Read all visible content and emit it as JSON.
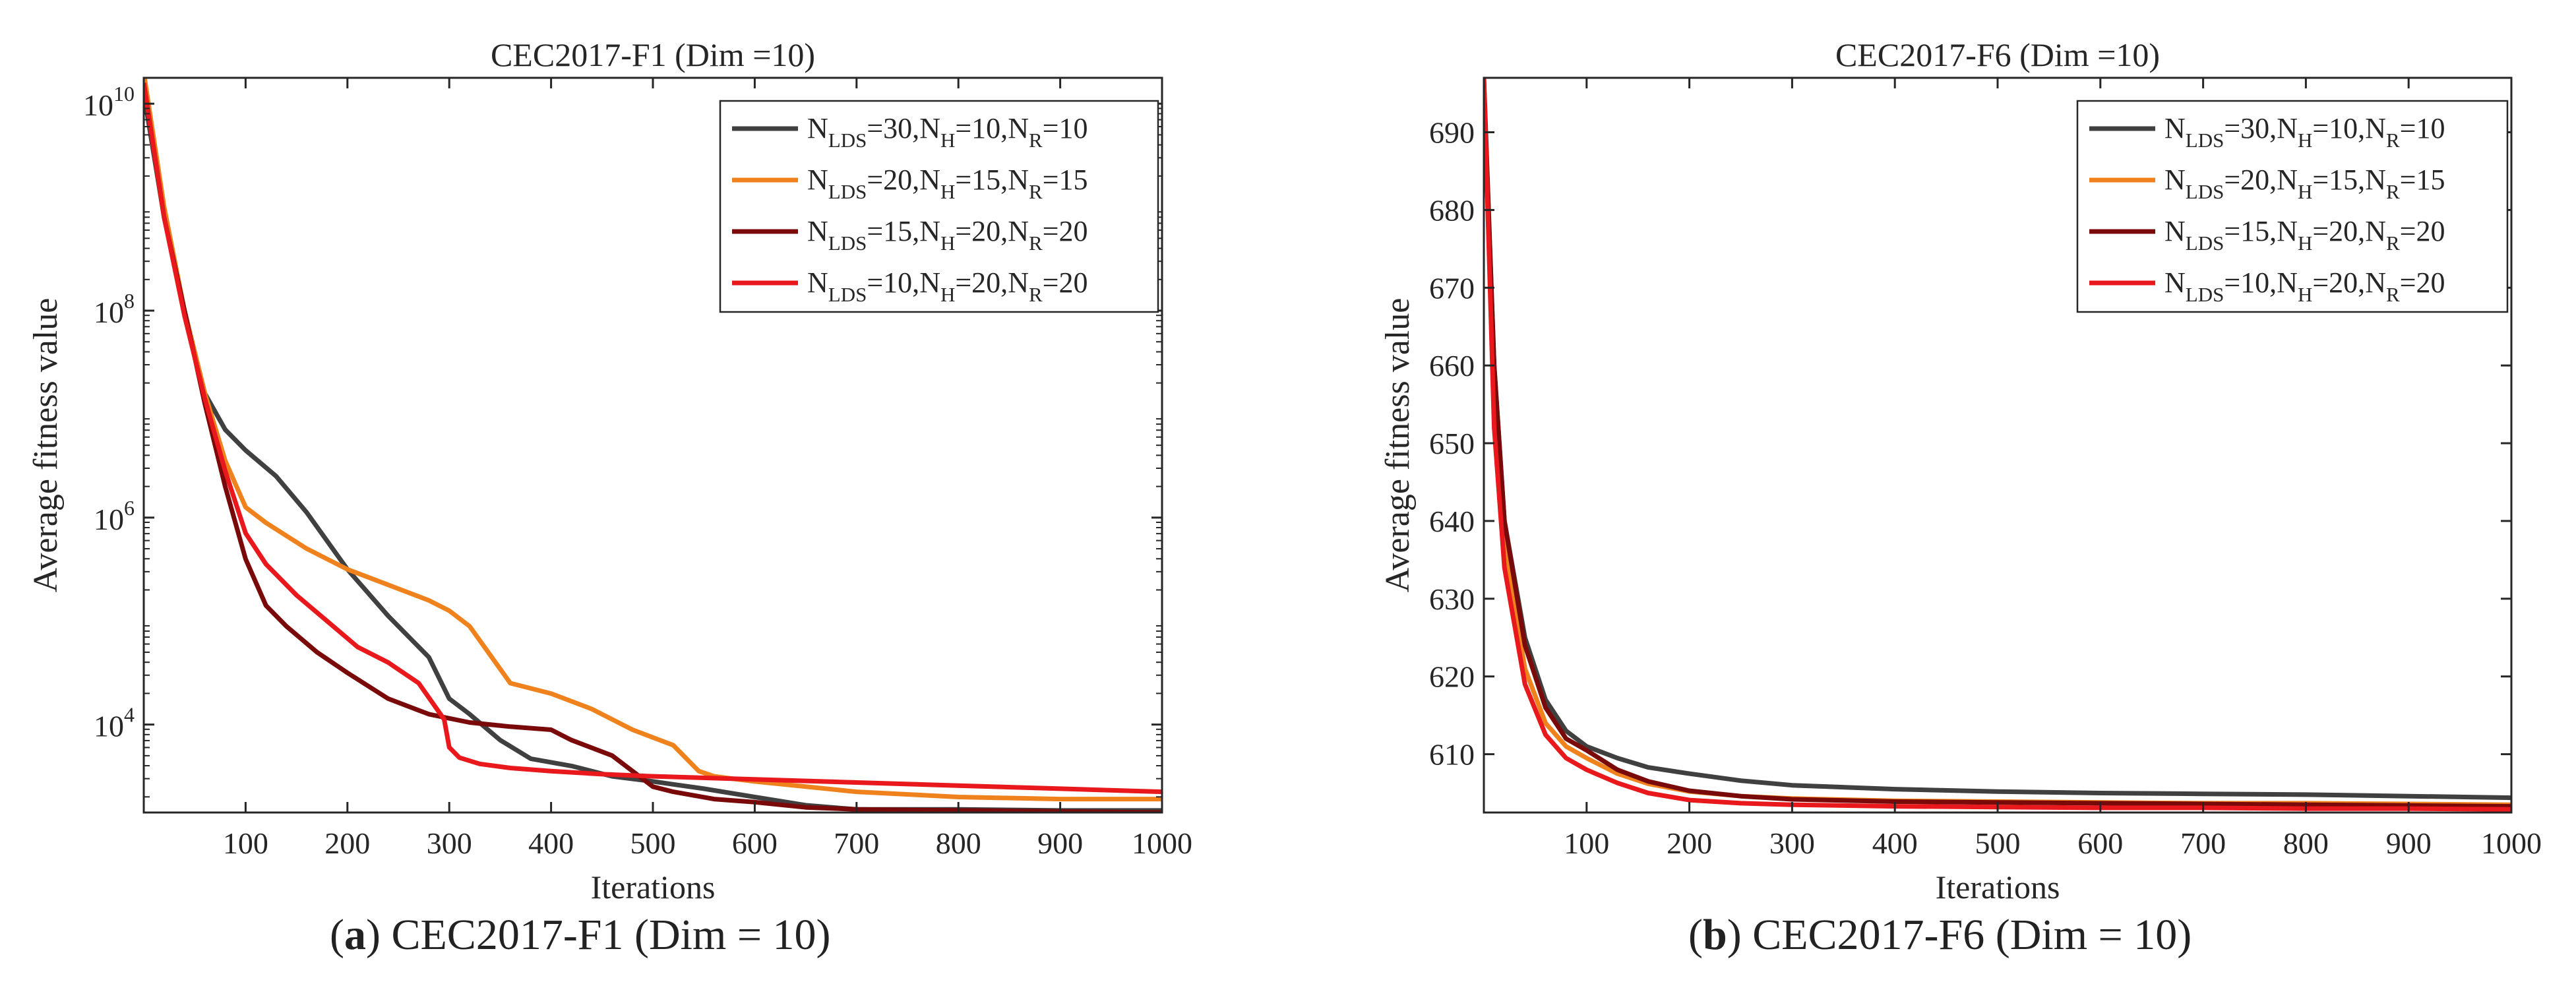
{
  "chart_data": [
    {
      "type": "line",
      "panel": "a",
      "title": "CEC2017-F1 (Dim =10)",
      "xlabel": "Iterations",
      "ylabel": "Average fitness value",
      "yscale": "log",
      "xlim": [
        0,
        1000
      ],
      "ylim_log10": [
        3.15,
        10.25
      ],
      "xticks": [
        100,
        200,
        300,
        400,
        500,
        600,
        700,
        800,
        900,
        1000
      ],
      "xtick_labels": [
        "100",
        "200",
        "300",
        "400",
        "500",
        "600",
        "700",
        "800",
        "900",
        "1000"
      ],
      "yticks_log10": [
        4,
        6,
        8,
        10
      ],
      "ytick_labels": [
        {
          "base": "10",
          "exp": "4"
        },
        {
          "base": "10",
          "exp": "6"
        },
        {
          "base": "10",
          "exp": "8"
        },
        {
          "base": "10",
          "exp": "10"
        }
      ],
      "legend_position": "top-right",
      "caption": {
        "label": "a",
        "text": " CEC2017-F1 (Dim = 10)"
      },
      "series": [
        {
          "name": "N_LDS=30,N_H=10,N_R=10",
          "color": "#404040",
          "legend": [
            [
              "N",
              "LDS",
              "=30,"
            ],
            [
              "N",
              "H",
              "=10,"
            ],
            [
              "N",
              "R",
              "=10"
            ]
          ],
          "x": [
            0,
            20,
            40,
            60,
            80,
            100,
            130,
            160,
            200,
            240,
            280,
            300,
            320,
            350,
            380,
            420,
            460,
            500,
            550,
            600,
            650,
            700,
            800,
            900,
            1000
          ],
          "y": [
            10.1,
            8.9,
            8.0,
            7.2,
            6.85,
            6.65,
            6.4,
            6.05,
            5.5,
            5.05,
            4.65,
            4.25,
            4.1,
            3.85,
            3.67,
            3.6,
            3.5,
            3.45,
            3.38,
            3.3,
            3.22,
            3.18,
            3.18,
            3.17,
            3.17
          ]
        },
        {
          "name": "N_LDS=20,N_H=15,N_R=15",
          "color": "#f0821e",
          "legend": [
            [
              "N",
              "LDS",
              "=20,"
            ],
            [
              "N",
              "H",
              "=15,"
            ],
            [
              "N",
              "R",
              "=15"
            ]
          ],
          "x": [
            0,
            20,
            40,
            60,
            80,
            100,
            120,
            160,
            200,
            240,
            280,
            300,
            320,
            360,
            400,
            440,
            480,
            520,
            545,
            560,
            600,
            700,
            800,
            900,
            1000
          ],
          "y": [
            10.3,
            9.0,
            8.0,
            7.2,
            6.55,
            6.1,
            5.95,
            5.7,
            5.5,
            5.35,
            5.2,
            5.1,
            4.95,
            4.4,
            4.3,
            4.15,
            3.95,
            3.8,
            3.55,
            3.5,
            3.45,
            3.35,
            3.3,
            3.28,
            3.28
          ]
        },
        {
          "name": "N_LDS=15,N_H=20,N_R=20",
          "color": "#7a0a0a",
          "legend": [
            [
              "N",
              "LDS",
              "=15,"
            ],
            [
              "N",
              "H",
              "=20,"
            ],
            [
              "N",
              "R",
              "=20"
            ]
          ],
          "x": [
            0,
            20,
            40,
            60,
            80,
            100,
            120,
            140,
            170,
            200,
            240,
            280,
            320,
            360,
            400,
            420,
            460,
            500,
            520,
            560,
            600,
            650,
            700,
            800,
            900,
            1000
          ],
          "y": [
            10.2,
            8.9,
            8.0,
            7.1,
            6.3,
            5.6,
            5.15,
            4.95,
            4.7,
            4.5,
            4.25,
            4.1,
            4.02,
            3.98,
            3.95,
            3.85,
            3.7,
            3.4,
            3.35,
            3.28,
            3.25,
            3.2,
            3.18,
            3.17,
            3.16,
            3.15
          ]
        },
        {
          "name": "N_LDS=10,N_H=20,N_R=20",
          "color": "#e8181c",
          "legend": [
            [
              "N",
              "LDS",
              "=10,"
            ],
            [
              "N",
              "H",
              "=20,"
            ],
            [
              "N",
              "R",
              "=20"
            ]
          ],
          "x": [
            0,
            20,
            40,
            60,
            80,
            100,
            120,
            150,
            180,
            210,
            240,
            270,
            295,
            300,
            310,
            330,
            360,
            400,
            450,
            500,
            600,
            700,
            800,
            900,
            1000
          ],
          "y": [
            10.2,
            8.9,
            7.95,
            7.15,
            6.45,
            5.85,
            5.55,
            5.25,
            5.0,
            4.75,
            4.6,
            4.4,
            4.05,
            3.78,
            3.68,
            3.62,
            3.58,
            3.55,
            3.52,
            3.5,
            3.47,
            3.44,
            3.41,
            3.38,
            3.35
          ]
        }
      ]
    },
    {
      "type": "line",
      "panel": "b",
      "title": "CEC2017-F6 (Dim =10)",
      "xlabel": "Iterations",
      "ylabel": "Average fitness value",
      "yscale": "linear",
      "xlim": [
        0,
        1000
      ],
      "ylim": [
        602.5,
        697
      ],
      "xticks": [
        100,
        200,
        300,
        400,
        500,
        600,
        700,
        800,
        900,
        1000
      ],
      "xtick_labels": [
        "100",
        "200",
        "300",
        "400",
        "500",
        "600",
        "700",
        "800",
        "900",
        "1000"
      ],
      "yticks": [
        610,
        620,
        630,
        640,
        650,
        660,
        670,
        680,
        690
      ],
      "ytick_labels": [
        "610",
        "620",
        "630",
        "640",
        "650",
        "660",
        "670",
        "680",
        "690"
      ],
      "legend_position": "top-right",
      "caption": {
        "label": "b",
        "text": " CEC2017-F6 (Dim = 10)"
      },
      "series": [
        {
          "name": "N_LDS=30,N_H=10,N_R=10",
          "color": "#404040",
          "legend": [
            [
              "N",
              "LDS",
              "=30,"
            ],
            [
              "N",
              "H",
              "=10,"
            ],
            [
              "N",
              "R",
              "=10"
            ]
          ],
          "x": [
            0,
            10,
            20,
            40,
            60,
            80,
            100,
            130,
            160,
            200,
            250,
            300,
            400,
            500,
            600,
            700,
            800,
            900,
            1000
          ],
          "y": [
            697,
            660,
            640,
            625,
            617,
            613,
            611,
            609.5,
            608.3,
            607.5,
            606.6,
            606,
            605.5,
            605.2,
            605,
            604.9,
            604.8,
            604.6,
            604.4
          ]
        },
        {
          "name": "N_LDS=20,N_H=15,N_R=15",
          "color": "#f0821e",
          "legend": [
            [
              "N",
              "LDS",
              "=20,"
            ],
            [
              "N",
              "H",
              "=15,"
            ],
            [
              "N",
              "R",
              "=15"
            ]
          ],
          "x": [
            0,
            10,
            20,
            40,
            60,
            80,
            100,
            130,
            160,
            200,
            250,
            300,
            400,
            500,
            600,
            700,
            800,
            900,
            1000
          ],
          "y": [
            696,
            655,
            637,
            621,
            614,
            611,
            609.5,
            607.5,
            606.2,
            605.2,
            604.6,
            604.3,
            604,
            603.9,
            603.8,
            603.7,
            603.7,
            603.6,
            603.5
          ]
        },
        {
          "name": "N_LDS=15,N_H=20,N_R=20",
          "color": "#7a0a0a",
          "legend": [
            [
              "N",
              "LDS",
              "=15,"
            ],
            [
              "N",
              "H",
              "=20,"
            ],
            [
              "N",
              "R",
              "=20"
            ]
          ],
          "x": [
            0,
            10,
            20,
            40,
            60,
            80,
            100,
            130,
            160,
            200,
            250,
            300,
            400,
            500,
            600,
            700,
            800,
            900,
            1000
          ],
          "y": [
            696,
            660,
            640,
            624,
            616,
            612,
            610.5,
            608,
            606.5,
            605.3,
            604.6,
            604.2,
            603.9,
            603.8,
            603.7,
            603.6,
            603.5,
            603.4,
            603.3
          ]
        },
        {
          "name": "N_LDS=10,N_H=20,N_R=20",
          "color": "#e8181c",
          "legend": [
            [
              "N",
              "LDS",
              "=10,"
            ],
            [
              "N",
              "H",
              "=20,"
            ],
            [
              "N",
              "R",
              "=20"
            ]
          ],
          "x": [
            0,
            10,
            20,
            40,
            60,
            80,
            100,
            130,
            160,
            200,
            250,
            300,
            400,
            500,
            600,
            700,
            800,
            900,
            1000
          ],
          "y": [
            697,
            652,
            634,
            619,
            612.5,
            609.5,
            608,
            606.3,
            605,
            604.1,
            603.7,
            603.5,
            603.3,
            603.2,
            603.1,
            603.1,
            603,
            603,
            602.9
          ]
        }
      ]
    }
  ]
}
